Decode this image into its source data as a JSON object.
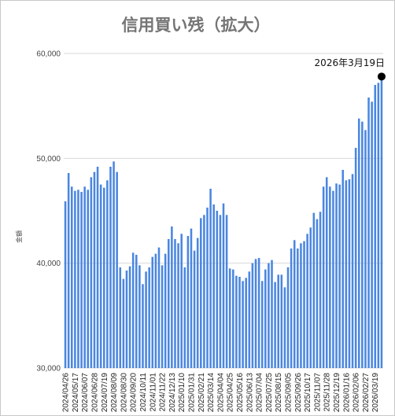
{
  "chart_data": {
    "type": "bar",
    "title": "信用買い残（拡大）",
    "xlabel": "",
    "ylabel": "金額",
    "ylim": [
      30000,
      60000
    ],
    "yticks": [
      {
        "value": 30000,
        "label": "30,000"
      },
      {
        "value": 40000,
        "label": "40,000"
      },
      {
        "value": 50000,
        "label": "50,000"
      },
      {
        "value": 60000,
        "label": "60,000"
      }
    ],
    "grid": true,
    "legend": "none",
    "bar_color": "#4a86e0",
    "x_tick_labels": [
      "2024/04/26",
      "2024/05/17",
      "2024/06/07",
      "2024/06/28",
      "2024/07/19",
      "2024/08/09",
      "2024/08/30",
      "2024/09/20",
      "2024/10/11",
      "2024/11/01",
      "2024/11/22",
      "2024/12/13",
      "2025/01/10",
      "2025/01/31",
      "2025/02/21",
      "2025/03/14",
      "2025/04/04",
      "2025/04/25",
      "2025/05/16",
      "2025/06/13",
      "2025/07/04",
      "2025/07/25",
      "2025/08/15",
      "2025/09/05",
      "2025/09/26",
      "2025/10/17",
      "2025/11/07",
      "2025/11/28",
      "2025/12/19",
      "2026/01/16",
      "2026/02/06",
      "2026/02/27",
      "2026/03/19"
    ],
    "x_tick_every": 3,
    "values": [
      45900,
      48600,
      47300,
      46900,
      47000,
      46800,
      47300,
      47000,
      48200,
      48700,
      49200,
      47500,
      47200,
      47900,
      49200,
      49700,
      48700,
      39600,
      38500,
      39300,
      39700,
      41000,
      40800,
      39800,
      38000,
      39200,
      39600,
      40600,
      40900,
      41500,
      39800,
      40900,
      42300,
      43500,
      42300,
      41900,
      42800,
      39600,
      42600,
      43300,
      41200,
      42400,
      44300,
      44600,
      45300,
      47100,
      45600,
      45000,
      44600,
      45700,
      44600,
      39500,
      39400,
      38800,
      38700,
      38300,
      38600,
      39200,
      40000,
      40400,
      40500,
      38300,
      39400,
      40000,
      40300,
      38200,
      38900,
      38900,
      37700,
      39600,
      41400,
      42200,
      41400,
      41900,
      42100,
      42800,
      43400,
      44800,
      44200,
      44900,
      47300,
      48200,
      47300,
      46900,
      47600,
      47500,
      48900,
      47900,
      48000,
      48500,
      51000,
      53800,
      53500,
      52700,
      55800,
      55400,
      57000,
      57200,
      57800
    ],
    "annotation": {
      "text": "2026年3月19日",
      "value": 57800
    }
  }
}
